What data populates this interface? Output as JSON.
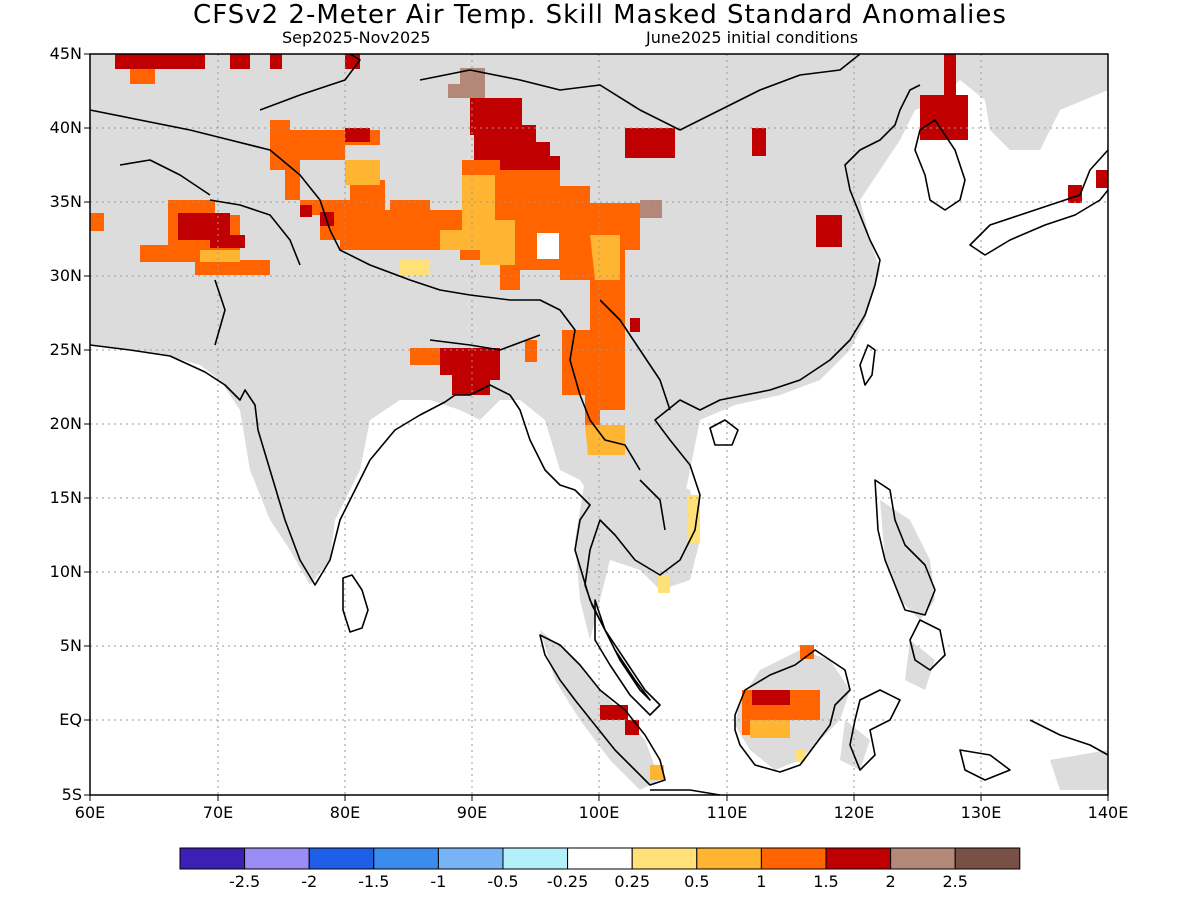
{
  "title": "CFSv2 2-Meter Air Temp. Skill Masked Standard Anomalies",
  "subtitle_left": "Sep2025-Nov2025",
  "subtitle_right": "June2025 initial conditions",
  "lat_labels": [
    "45N",
    "40N",
    "35N",
    "30N",
    "25N",
    "20N",
    "15N",
    "10N",
    "5N",
    "EQ",
    "5S"
  ],
  "lon_labels": [
    "60E",
    "70E",
    "80E",
    "90E",
    "100E",
    "110E",
    "120E",
    "130E",
    "140E"
  ],
  "colorbar": {
    "colors": [
      "#3c1fb4",
      "#9b8cf5",
      "#1f5ee6",
      "#3c8cf0",
      "#78b4f5",
      "#b4f0fa",
      "#ffffff",
      "#ffe178",
      "#ffb432",
      "#ff6400",
      "#c00000",
      "#b48878",
      "#785046"
    ],
    "labels": [
      "-2.5",
      "-2",
      "-1.5",
      "-1",
      "-0.5",
      "-0.25",
      "0.25",
      "0.5",
      "1",
      "1.5",
      "2",
      "2.5"
    ]
  },
  "colors": {
    "land_masked": "#dcdcdc",
    "coast": "#000000",
    "grid": "#9a9a9a"
  },
  "extent": {
    "lon": [
      60,
      140
    ],
    "lat": [
      -5,
      45
    ]
  }
}
